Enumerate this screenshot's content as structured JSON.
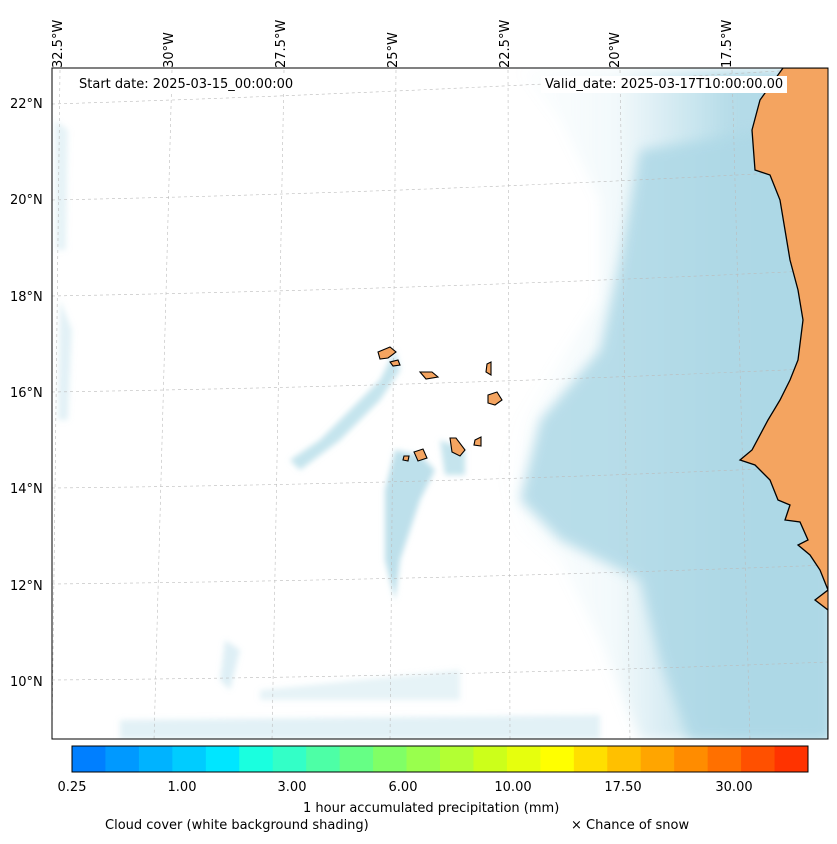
{
  "map": {
    "start_date": "Start date: 2025-03-15_00:00:00",
    "valid_date": "Valid_date: 2025-03-17T10:00:00.00",
    "longitude_labels": [
      "32.5°W",
      "30°W",
      "27.5°W",
      "25°W",
      "22.5°W",
      "20°W",
      "17.5°W"
    ],
    "latitude_labels": [
      "22°N",
      "20°N",
      "18°N",
      "16°N",
      "14°N",
      "12°N",
      "10°N"
    ],
    "land_color": "#f4a460",
    "cloud_color": "#add8e6"
  },
  "colorbar": {
    "colors": [
      "#007fff",
      "#0099ff",
      "#00b3ff",
      "#00ccff",
      "#00e6ff",
      "#1affdf",
      "#33ffc7",
      "#4dffa6",
      "#66ff85",
      "#80ff66",
      "#99ff4d",
      "#b3ff33",
      "#ccff1a",
      "#e6ff0d",
      "#ffff00",
      "#ffdf00",
      "#ffc000",
      "#ffa500",
      "#ff8c00",
      "#ff7000",
      "#ff5000",
      "#ff3300"
    ],
    "tick_labels": [
      "0.25",
      "1.00",
      "3.00",
      "6.00",
      "10.00",
      "17.50",
      "30.00"
    ],
    "label": "1 hour accumulated precipitation (mm)"
  },
  "captions": {
    "cloud": "Cloud cover (white background shading)",
    "snow": "× Chance of snow"
  }
}
